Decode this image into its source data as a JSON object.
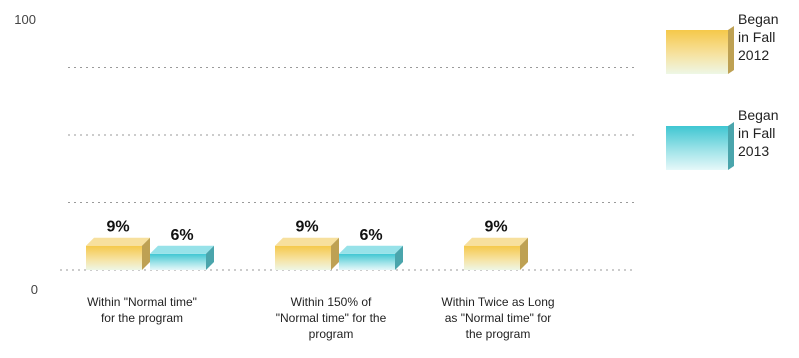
{
  "chart_data": {
    "type": "bar",
    "categories": [
      [
        "Within \"Normal time\"",
        "for the program"
      ],
      [
        "Within 150% of",
        "\"Normal time\" for the",
        "program"
      ],
      [
        "Within Twice as Long",
        "as \"Normal time\" for",
        "the program"
      ]
    ],
    "series": [
      {
        "name": [
          "Began",
          "in Fall",
          "2012"
        ],
        "values": [
          9,
          9,
          9
        ],
        "labels": [
          "9%",
          "9%",
          "9%"
        ],
        "color": "#f3cf6a"
      },
      {
        "name": [
          "Began",
          "in Fall",
          "2013"
        ],
        "values": [
          6,
          6,
          null
        ],
        "labels": [
          "6%",
          "6%",
          ""
        ],
        "color": "#5fd3dd"
      }
    ],
    "ylim": [
      0,
      100
    ],
    "yticks": [
      "0",
      "100"
    ],
    "grid": true,
    "legend": "right",
    "style": "3d"
  }
}
